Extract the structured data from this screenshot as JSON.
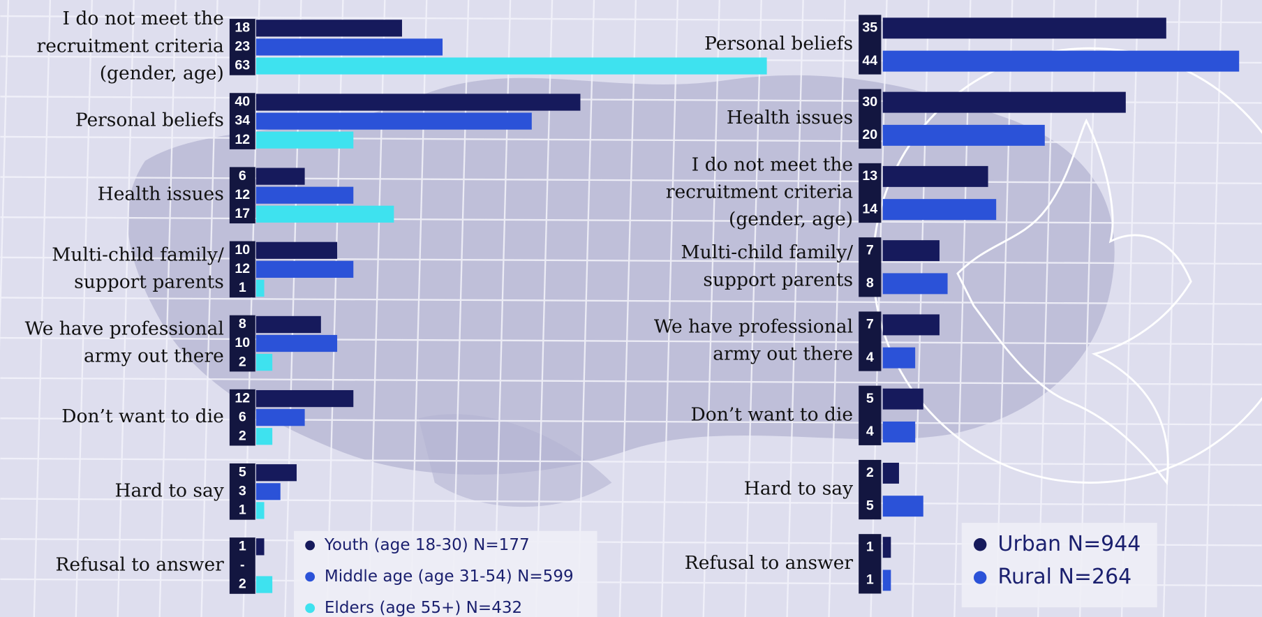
{
  "chart_data": [
    {
      "type": "bar",
      "orientation": "horizontal",
      "categories": [
        "I do not meet the\nrecruitment criteria\n(gender, age)",
        "Personal beliefs",
        "Health issues",
        "Multi-child family/\nsupport parents",
        "We have professional\narmy out there",
        "Don’t want to die",
        "Hard to say",
        "Refusal to answer"
      ],
      "series": [
        {
          "name": "Youth (age 18-30) N=177",
          "color": "#161a5c",
          "values": [
            18,
            40,
            6,
            10,
            8,
            12,
            5,
            1
          ]
        },
        {
          "name": "Middle age (age 31-54) N=599",
          "color": "#2b52d8",
          "values": [
            23,
            34,
            12,
            12,
            10,
            6,
            3,
            null
          ],
          "value_labels": [
            "23",
            "34",
            "12",
            "12",
            "10",
            "6",
            "3",
            "-"
          ]
        },
        {
          "name": "Elders (age 55+) N=432",
          "color": "#3ee2ef",
          "values": [
            63,
            12,
            17,
            1,
            2,
            2,
            1,
            2
          ]
        }
      ],
      "xlim": [
        0,
        65
      ]
    },
    {
      "type": "bar",
      "orientation": "horizontal",
      "categories": [
        "Personal beliefs",
        "Health issues",
        "I do not meet the\nrecruitment criteria\n(gender, age)",
        "Multi-child family/\nsupport parents",
        "We have professional\narmy out there",
        "Don’t want to die",
        "Hard to say",
        "Refusal to answer"
      ],
      "series": [
        {
          "name": "Urban N=944",
          "color": "#161a5c",
          "values": [
            35,
            30,
            13,
            7,
            7,
            5,
            2,
            1
          ]
        },
        {
          "name": "Rural N=264",
          "color": "#2b52d8",
          "values": [
            44,
            20,
            14,
            8,
            4,
            4,
            5,
            1
          ]
        }
      ],
      "xlim": [
        0,
        45
      ]
    }
  ]
}
